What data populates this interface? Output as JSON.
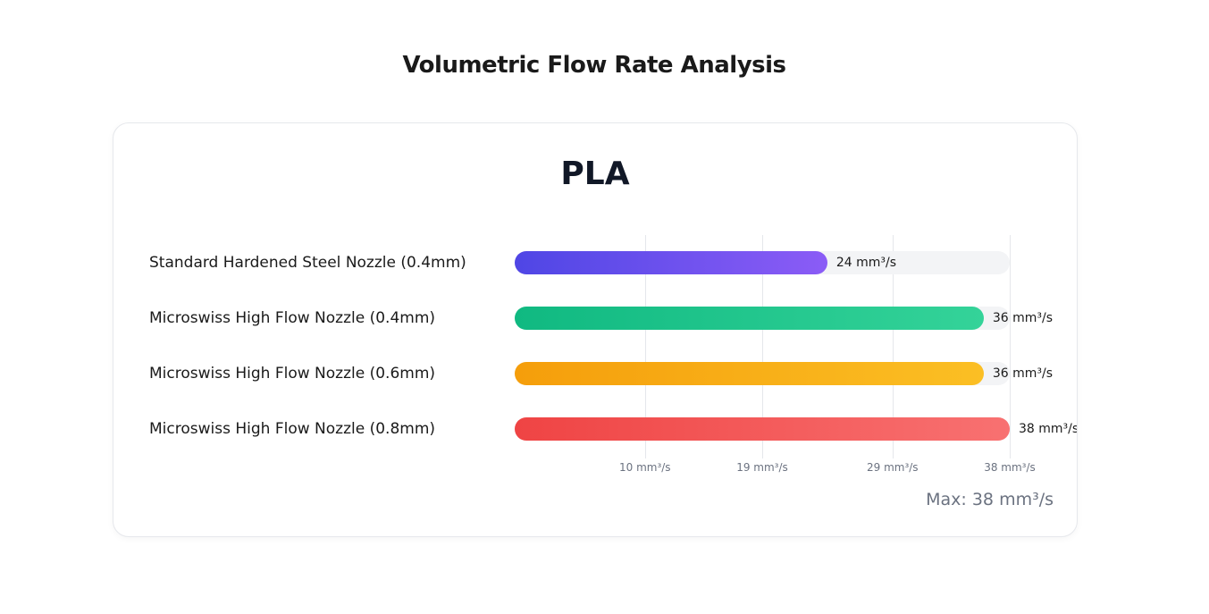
{
  "page": {
    "title": "Volumetric Flow Rate Analysis"
  },
  "chart_data": {
    "type": "bar",
    "orientation": "horizontal",
    "title": "PLA",
    "categories": [
      "Standard Hardened Steel Nozzle (0.4mm)",
      "Microswiss High Flow Nozzle (0.4mm)",
      "Microswiss High Flow Nozzle (0.6mm)",
      "Microswiss High Flow Nozzle (0.8mm)"
    ],
    "values": [
      24,
      36,
      36,
      38
    ],
    "value_labels": [
      "24 mm³/s",
      "36 mm³/s",
      "36 mm³/s",
      "38 mm³/s"
    ],
    "colors": [
      [
        "#4f46e5",
        "#8b5cf6"
      ],
      [
        "#10b981",
        "#34d399"
      ],
      [
        "#f59e0b",
        "#fbbf24"
      ],
      [
        "#ef4444",
        "#f87171"
      ]
    ],
    "xlim": [
      0,
      38
    ],
    "ticks": [
      10,
      19,
      29,
      38
    ],
    "tick_labels": [
      "10 mm³/s",
      "19 mm³/s",
      "29 mm³/s",
      "38 mm³/s"
    ],
    "grid": true,
    "max_label": "Max: 38 mm³/s"
  }
}
